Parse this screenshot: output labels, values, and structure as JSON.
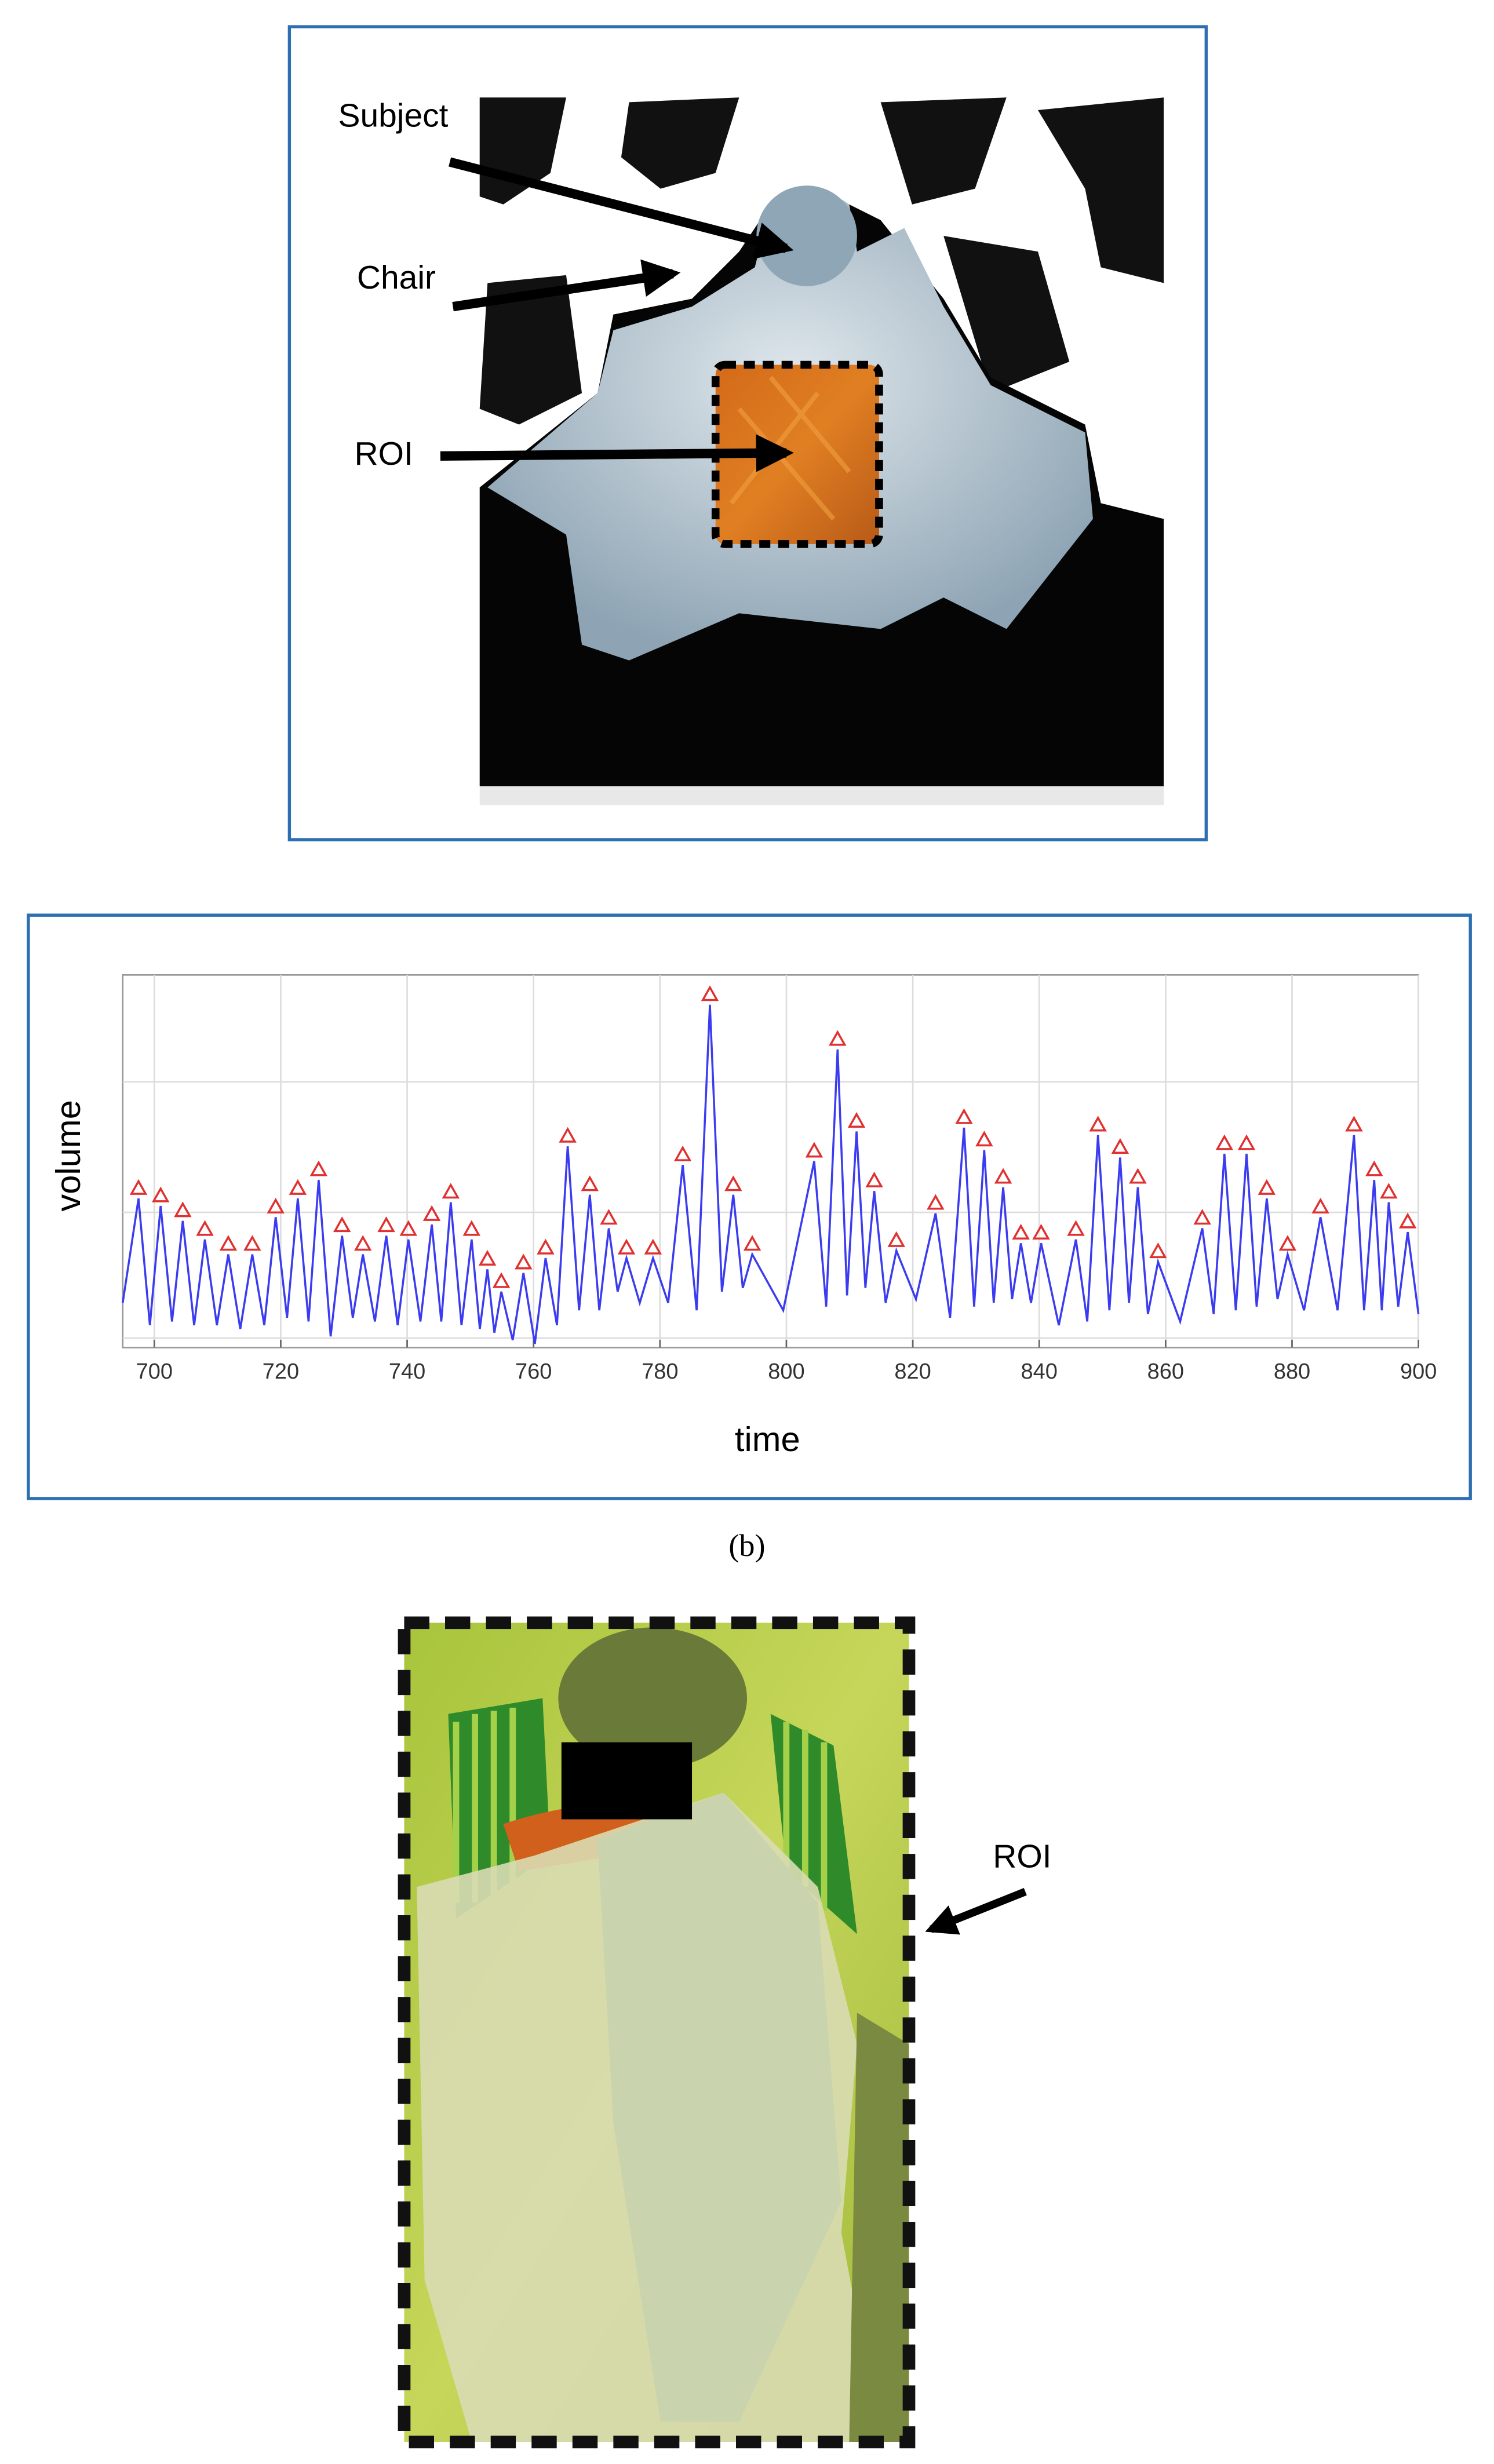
{
  "top_panel": {
    "labels": [
      "Subject",
      "Chair",
      "ROI"
    ]
  },
  "chart_data": {
    "type": "line",
    "x_label": "time",
    "y_label": "volume",
    "xlim": [
      695,
      900
    ],
    "xticks": [
      700,
      720,
      740,
      760,
      780,
      800,
      820,
      840,
      860,
      880,
      900
    ],
    "ylim": [
      0,
      10
    ],
    "grid": true,
    "line": {
      "color": "#3b3bf0",
      "x": [
        695,
        697.5,
        699.3,
        701.0,
        702.8,
        704.5,
        706.3,
        708.0,
        709.9,
        711.7,
        713.6,
        715.5,
        717.4,
        719.2,
        721.0,
        722.7,
        724.4,
        726.0,
        727.9,
        729.7,
        731.4,
        733.0,
        734.9,
        736.7,
        738.5,
        740.2,
        742.1,
        743.9,
        745.4,
        746.9,
        748.6,
        750.2,
        751.5,
        752.7,
        753.8,
        754.9,
        756.7,
        758.4,
        760.2,
        761.9,
        763.7,
        765.4,
        767.2,
        768.9,
        770.4,
        771.9,
        773.3,
        774.7,
        776.8,
        778.9,
        781.3,
        783.6,
        785.8,
        787.9,
        789.8,
        791.6,
        793.1,
        794.6,
        799.5,
        804.4,
        806.3,
        808.1,
        809.6,
        811.1,
        812.5,
        813.9,
        815.7,
        817.4,
        820.5,
        823.6,
        825.9,
        828.1,
        829.7,
        831.3,
        832.8,
        834.3,
        835.7,
        837.1,
        838.7,
        840.3,
        843.1,
        845.8,
        847.6,
        849.3,
        851.1,
        852.8,
        854.2,
        855.6,
        857.2,
        858.8,
        862.3,
        865.8,
        867.6,
        869.3,
        871.1,
        872.8,
        874.4,
        876.0,
        877.7,
        879.3,
        881.9,
        884.5,
        887.2,
        889.8,
        891.4,
        893.0,
        894.2,
        895.3,
        896.8,
        898.3,
        900
      ],
      "values": [
        1.2,
        4.0,
        0.6,
        3.8,
        0.7,
        3.4,
        0.6,
        2.9,
        0.6,
        2.5,
        0.5,
        2.5,
        0.6,
        3.5,
        0.8,
        4.0,
        0.7,
        4.5,
        0.3,
        3.0,
        0.8,
        2.5,
        0.7,
        3.0,
        0.6,
        2.9,
        0.7,
        3.3,
        0.7,
        3.9,
        0.6,
        2.9,
        0.5,
        2.1,
        0.4,
        1.5,
        0.2,
        2.0,
        0.1,
        2.4,
        0.6,
        5.4,
        1.0,
        4.1,
        1.0,
        3.2,
        1.5,
        2.4,
        1.2,
        2.4,
        1.2,
        4.9,
        1.0,
        9.2,
        1.5,
        4.1,
        1.6,
        2.5,
        1.0,
        5.0,
        1.1,
        8.0,
        1.4,
        5.8,
        1.6,
        4.2,
        1.2,
        2.6,
        1.3,
        3.6,
        0.8,
        5.9,
        1.1,
        5.3,
        1.2,
        4.3,
        1.3,
        2.8,
        1.2,
        2.8,
        0.6,
        2.9,
        0.7,
        5.7,
        1.0,
        5.1,
        1.2,
        4.3,
        0.9,
        2.3,
        0.7,
        3.2,
        0.9,
        5.2,
        1.0,
        5.2,
        1.1,
        4.0,
        1.3,
        2.5,
        1.0,
        3.5,
        1.0,
        5.7,
        1.0,
        4.5,
        1.0,
        3.9,
        1.1,
        3.1,
        0.9
      ]
    },
    "peaks": {
      "color": "#e03030",
      "x": [
        697.5,
        701.0,
        704.5,
        708.0,
        711.7,
        715.5,
        719.2,
        722.7,
        726.0,
        729.7,
        733.0,
        736.7,
        740.2,
        743.9,
        746.9,
        750.2,
        752.7,
        754.9,
        758.4,
        761.9,
        765.4,
        768.9,
        771.9,
        774.7,
        778.9,
        783.6,
        787.9,
        791.6,
        794.6,
        804.4,
        808.1,
        811.1,
        813.9,
        817.4,
        823.6,
        828.1,
        831.3,
        834.3,
        837.1,
        840.3,
        845.8,
        849.3,
        852.8,
        855.6,
        858.8,
        865.8,
        869.3,
        872.8,
        876.0,
        879.3,
        884.5,
        889.8,
        893.0,
        895.3,
        898.3
      ],
      "values": [
        4.0,
        3.8,
        3.4,
        2.9,
        2.5,
        2.5,
        3.5,
        4.0,
        4.5,
        3.0,
        2.5,
        3.0,
        2.9,
        3.3,
        3.9,
        2.9,
        2.1,
        1.5,
        2.0,
        2.4,
        5.4,
        4.1,
        3.2,
        2.4,
        2.4,
        4.9,
        9.2,
        4.1,
        2.5,
        5.0,
        8.0,
        5.8,
        4.2,
        2.6,
        3.6,
        5.9,
        5.3,
        4.3,
        2.8,
        2.8,
        2.9,
        5.7,
        5.1,
        4.3,
        2.3,
        3.2,
        5.2,
        5.2,
        4.0,
        2.5,
        3.5,
        5.7,
        4.5,
        3.9,
        3.1
      ]
    }
  },
  "caption": "(b)",
  "bottom_panel": {
    "label": "ROI"
  }
}
